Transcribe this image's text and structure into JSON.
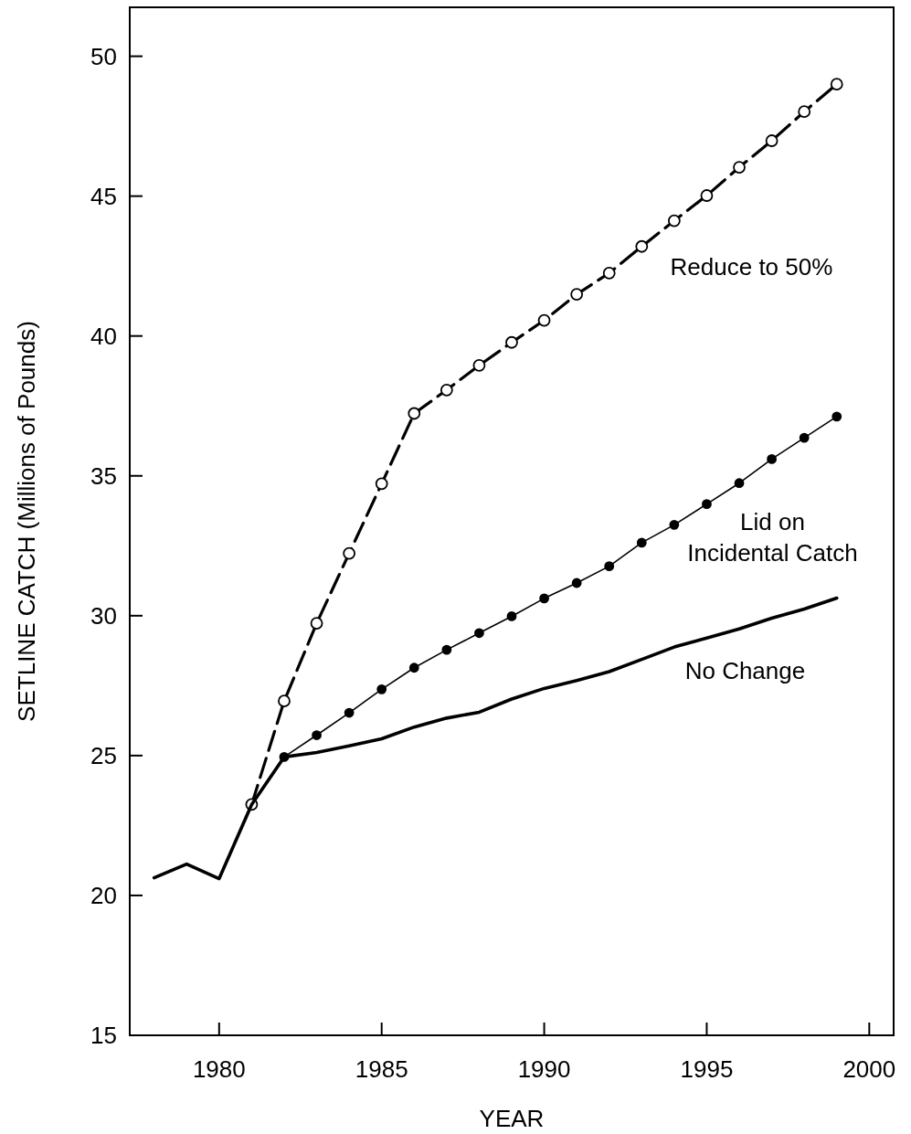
{
  "chart_data": {
    "type": "line",
    "xlabel": "YEAR",
    "ylabel": "SETLINE CATCH (Millions of Pounds)",
    "xlim": [
      1977.25,
      2000.75
    ],
    "ylim": [
      15,
      51.75
    ],
    "xticks": [
      1980,
      1985,
      1990,
      1995,
      2000
    ],
    "yticks": [
      15,
      20,
      25,
      30,
      35,
      40,
      45,
      50
    ],
    "series": [
      {
        "name": "Reduce to 50%",
        "color": "#000000",
        "marker": "circle",
        "line_style": "dashed",
        "x": [
          1981,
          1982,
          1983,
          1984,
          1985,
          1986,
          1987,
          1988,
          1989,
          1990,
          1991,
          1992,
          1993,
          1994,
          1995,
          1996,
          1997,
          1998,
          1999
        ],
        "values": [
          23.25,
          26.95,
          29.73,
          32.23,
          34.72,
          37.23,
          38.07,
          38.95,
          39.77,
          40.56,
          41.49,
          42.25,
          43.2,
          44.12,
          45.02,
          46.03,
          46.98,
          48.02,
          49.0
        ]
      },
      {
        "name": "Lid on Incidental Catch",
        "color": "#000000",
        "marker": "circle",
        "line_style": "solid",
        "x": [
          1982,
          1983,
          1984,
          1985,
          1986,
          1987,
          1988,
          1989,
          1990,
          1991,
          1992,
          1993,
          1994,
          1995,
          1996,
          1997,
          1998,
          1999
        ],
        "values": [
          24.95,
          25.73,
          26.53,
          27.37,
          28.14,
          28.78,
          29.38,
          29.98,
          30.62,
          31.17,
          31.77,
          32.61,
          33.25,
          33.99,
          34.74,
          35.6,
          36.36,
          37.12
        ]
      },
      {
        "name": "No Change",
        "color": "#000000",
        "marker": "none",
        "line_style": "solid",
        "x": [
          1978,
          1979,
          1980,
          1981,
          1982,
          1983,
          1984,
          1985,
          1986,
          1987,
          1988,
          1989,
          1990,
          1991,
          1992,
          1993,
          1994,
          1995,
          1996,
          1997,
          1998,
          1999
        ],
        "values": [
          20.63,
          21.12,
          20.6,
          23.25,
          24.95,
          25.11,
          25.35,
          25.6,
          26.02,
          26.34,
          26.55,
          27.02,
          27.4,
          27.68,
          28.0,
          28.44,
          28.88,
          29.2,
          29.53,
          29.91,
          30.24,
          30.63
        ]
      }
    ]
  }
}
